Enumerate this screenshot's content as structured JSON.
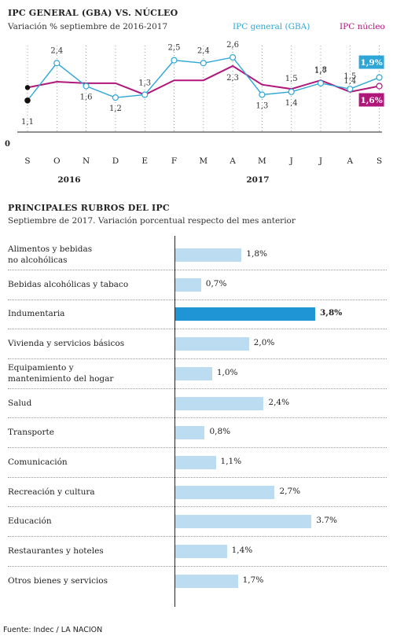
{
  "line_section": {
    "title": "IPC GENERAL (GBA) VS. NÚCLEO",
    "subtitle": "Variación % septiembre de 2016-2017",
    "legend_general": "IPC general (GBA)",
    "legend_nucleo": "IPC núcleo",
    "zero_label": "0",
    "year_2016": "2016",
    "year_2017": "2017"
  },
  "bar_section": {
    "title": "PRINCIPALES RUBROS DEL IPC",
    "subtitle": "Septiembre de 2017. Variación porcentual respecto del mes anterior"
  },
  "source": "Fuente: Indec / LA NACION",
  "colors": {
    "general": "#2ea6d6",
    "nucleo": "#b0177a",
    "bar": "#bcdcf2",
    "bar_highlight": "#1f95d6"
  },
  "chart_data": [
    {
      "type": "line",
      "categories": [
        "S",
        "O",
        "N",
        "D",
        "E",
        "F",
        "M",
        "A",
        "M",
        "J",
        "J",
        "A",
        "S"
      ],
      "series": [
        {
          "name": "IPC general (GBA)",
          "values": [
            1.1,
            2.4,
            1.6,
            1.2,
            1.3,
            2.5,
            2.4,
            2.6,
            1.3,
            1.4,
            1.7,
            1.5,
            1.9
          ],
          "labels": [
            "1,1",
            "2,4",
            "1,6",
            "1,2",
            "1,3",
            "2,5",
            "2,4",
            "2,6",
            "1,3",
            "1,4",
            "1,7",
            "1,5",
            "1,9%"
          ]
        },
        {
          "name": "IPC núcleo",
          "values": [
            1.55,
            1.75,
            1.7,
            1.7,
            1.3,
            1.8,
            1.8,
            2.3,
            1.65,
            1.5,
            1.8,
            1.4,
            1.6
          ],
          "labels": {
            "7": "2,3",
            "9": "1,5",
            "10": "1,8",
            "11": "1,4",
            "12": "1,6%"
          }
        }
      ],
      "title": "IPC GENERAL (GBA) VS. NÚCLEO",
      "subtitle": "Variación % septiembre de 2016-2017",
      "ylim": [
        0,
        2.9
      ],
      "grid": false,
      "legend": "top-right"
    },
    {
      "type": "bar",
      "orientation": "horizontal",
      "categories": [
        "Alimentos y bebidas no alcohólicas",
        "Bebidas alcohólicas y tabaco",
        "Indumentaria",
        "Vivienda y servicios básicos",
        "Equipamiento y mantenimiento del hogar",
        "Salud",
        "Transporte",
        "Comunicación",
        "Recreación y cultura",
        "Educación",
        "Restaurantes y hoteles",
        "Otros bienes y servicios"
      ],
      "category_lines": [
        [
          "Alimentos y bebidas",
          "no alcohólicas"
        ],
        [
          "Bebidas alcohólicas y tabaco"
        ],
        [
          "Indumentaria"
        ],
        [
          "Vivienda y servicios básicos"
        ],
        [
          "Equipamiento y",
          "mantenimiento del hogar"
        ],
        [
          "Salud"
        ],
        [
          "Transporte"
        ],
        [
          "Comunicación"
        ],
        [
          "Recreación y cultura"
        ],
        [
          "Educación"
        ],
        [
          "Restaurantes y hoteles"
        ],
        [
          "Otros bienes y servicios"
        ]
      ],
      "values": [
        1.8,
        0.7,
        3.8,
        2.0,
        1.0,
        2.4,
        0.8,
        1.1,
        2.7,
        3.7,
        1.4,
        1.7
      ],
      "labels": [
        "1,8%",
        "0,7%",
        "3,8%",
        "2,0%",
        "1,0%",
        "2,4%",
        "0,8%",
        "1,1%",
        "2,7%",
        "3.7%",
        "1,4%",
        "1,7%"
      ],
      "highlight_index": 2,
      "title": "PRINCIPALES RUBROS DEL IPC",
      "subtitle": "Septiembre de 2017. Variación porcentual respecto del mes anterior",
      "xlim": [
        0,
        3.8
      ],
      "grid": false
    }
  ]
}
